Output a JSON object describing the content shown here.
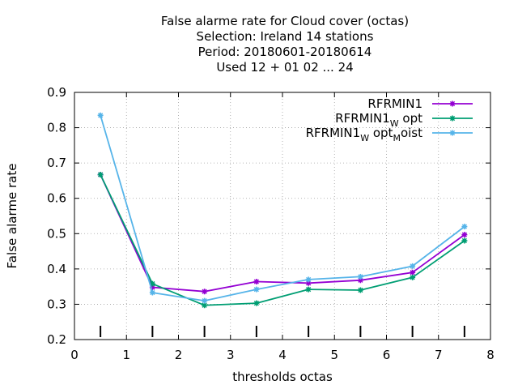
{
  "chart_data": {
    "type": "line",
    "title_lines": [
      "False alarme rate  for Cloud cover (octas)",
      "Selection: Ireland      14 stations",
      "Period: 20180601-20180614",
      "Used  12 + 01 02 ... 24"
    ],
    "xlabel": "thresholds octas",
    "ylabel": "False alarme rate",
    "xlim": [
      0,
      8
    ],
    "ylim": [
      0.2,
      0.9
    ],
    "x_ticks": [
      "0",
      "1",
      "2",
      "3",
      "4",
      "5",
      "6",
      "7",
      "8"
    ],
    "y_ticks": [
      "0.2",
      "0.3",
      "0.4",
      "0.5",
      "0.6",
      "0.7",
      "0.8",
      "0.9"
    ],
    "grid": true,
    "legend_position": "top-right",
    "x": [
      0.5,
      1.5,
      2.5,
      3.5,
      4.5,
      5.5,
      6.5,
      7.5
    ],
    "series": [
      {
        "name": "RFRMIN1",
        "legend_parts": [
          {
            "t": "RFRMIN1"
          }
        ],
        "color": "#9400d3",
        "values": [
          0.667,
          0.348,
          0.336,
          0.364,
          0.36,
          0.368,
          0.39,
          0.497
        ]
      },
      {
        "name": "RFRMIN1_W opt",
        "legend_parts": [
          {
            "t": "RFRMIN1"
          },
          {
            "t": "W",
            "sub": true
          },
          {
            "t": " opt"
          }
        ],
        "color": "#009e73",
        "values": [
          0.667,
          0.358,
          0.297,
          0.303,
          0.342,
          0.34,
          0.376,
          0.48
        ]
      },
      {
        "name": "RFRMIN1_W opt_M oist",
        "legend_parts": [
          {
            "t": "RFRMIN1"
          },
          {
            "t": "W",
            "sub": true
          },
          {
            "t": " opt"
          },
          {
            "t": "M",
            "sub": true
          },
          {
            "t": "oist"
          }
        ],
        "color": "#56b4e9",
        "values": [
          0.835,
          0.333,
          0.31,
          0.342,
          0.37,
          0.378,
          0.408,
          0.52
        ]
      }
    ]
  }
}
